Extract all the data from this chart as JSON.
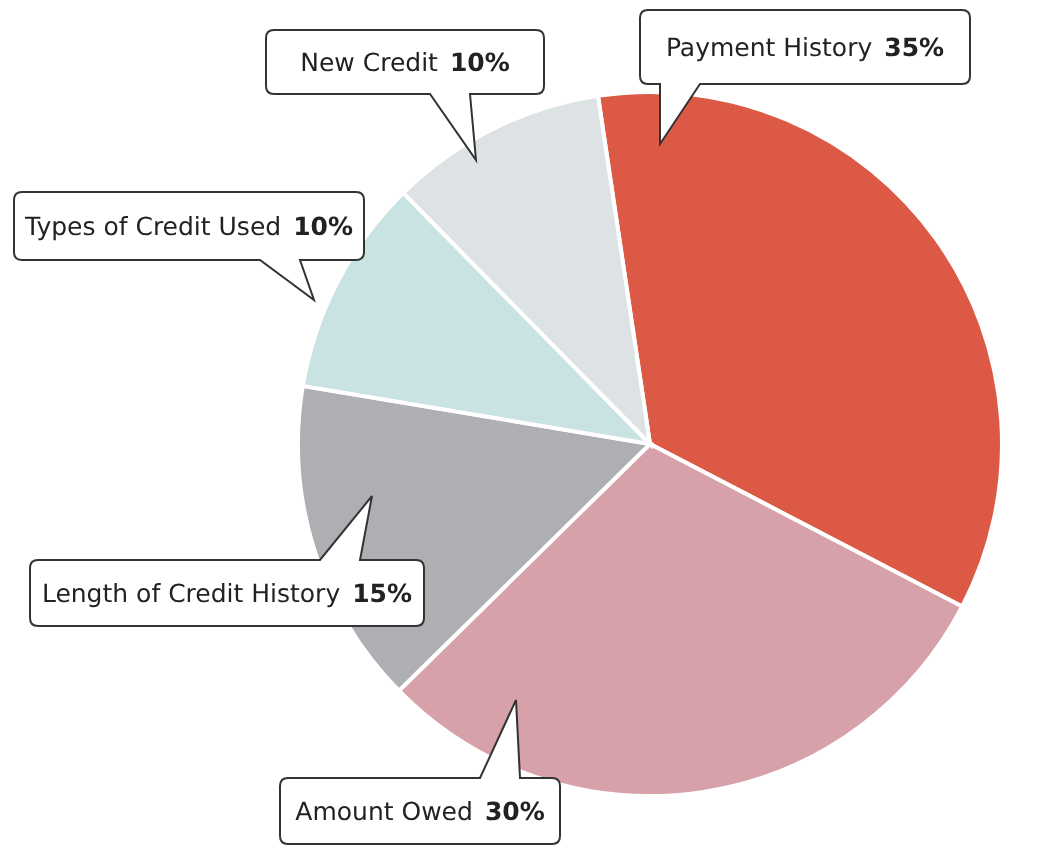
{
  "chart_data": {
    "type": "pie",
    "categories": [
      "Payment History",
      "Amount Owed",
      "Length of Credit History",
      "Types of Credit Used",
      "New Credit"
    ],
    "values": [
      35,
      30,
      15,
      10,
      10
    ],
    "value_labels": [
      "35%",
      "30%",
      "15%",
      "10%",
      "10%"
    ],
    "colors": [
      "#dc5a45",
      "#d6a1a8",
      "#aeafb2",
      "#c9e3e3",
      "#dde3e5"
    ]
  }
}
